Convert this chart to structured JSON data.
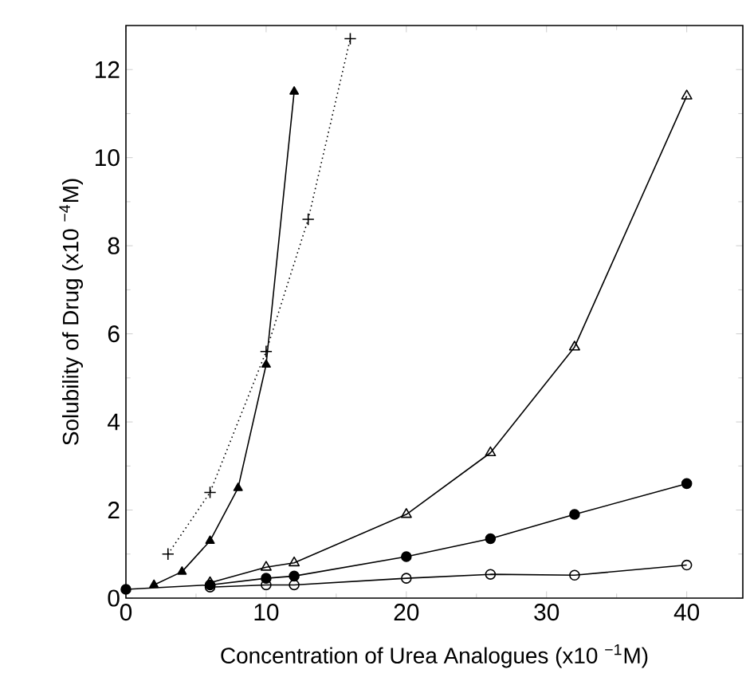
{
  "chart_data": {
    "type": "line",
    "xlabel": "Concentration of Urea Analogues (x10 $^{−1}$M)",
    "ylabel": "Solubility of Drug (x10 $^{−4}$M)",
    "xlim": [
      0,
      44
    ],
    "ylim": [
      0,
      13
    ],
    "xticks": [
      0,
      10,
      20,
      30,
      40
    ],
    "yticks": [
      0,
      2,
      4,
      6,
      8,
      10,
      12
    ],
    "grid": false,
    "series": [
      {
        "color": "#000000",
        "marker": "triangle",
        "line_style": "solid",
        "x": [
          2,
          4,
          6,
          8,
          10,
          12
        ],
        "values": [
          0.3,
          0.6,
          1.3,
          2.5,
          5.3,
          11.5
        ]
      },
      {
        "color": "#000000",
        "marker": "cross",
        "line_style": "dotted",
        "x": [
          3,
          6,
          10,
          13,
          16
        ],
        "values": [
          1.0,
          2.4,
          5.6,
          8.6,
          12.7
        ]
      },
      {
        "color": "#000000",
        "marker": "triangle",
        "line_style": "solid",
        "x": [
          6,
          10,
          12,
          20,
          26,
          32,
          40
        ],
        "values": [
          0.35,
          0.7,
          0.8,
          1.9,
          3.3,
          5.7,
          11.4
        ]
      },
      {
        "color": "#000000",
        "marker": "circle",
        "line_style": "solid",
        "x": [
          0,
          6,
          10,
          12,
          20,
          26,
          32,
          40
        ],
        "values": [
          0.2,
          0.3,
          0.45,
          0.5,
          0.94,
          1.35,
          1.9,
          2.6
        ]
      },
      {
        "color": "#000000",
        "marker": "circle",
        "line_style": "solid",
        "x": [
          6,
          10,
          12,
          20,
          26,
          32,
          40
        ],
        "values": [
          0.25,
          0.3,
          0.3,
          0.45,
          0.54,
          0.52,
          0.75
        ]
      }
    ]
  }
}
